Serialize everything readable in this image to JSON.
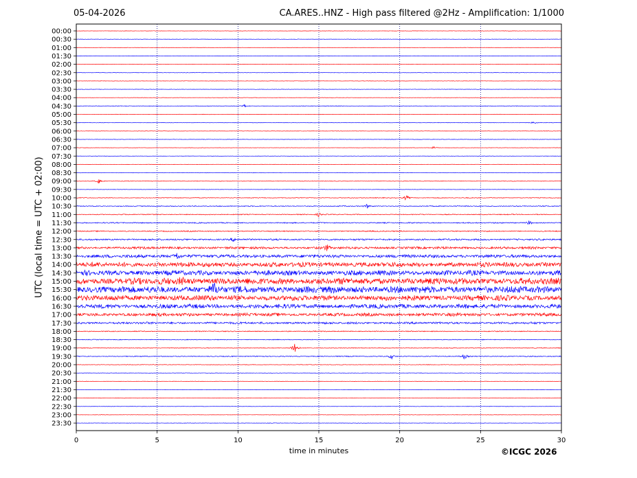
{
  "header": {
    "date": "05-04-2026",
    "title": "CA.ARES..HNZ - High pass filtered @2Hz - Amplification: 1/1000"
  },
  "footer": {
    "credit": "©ICGC 2026"
  },
  "chart_data": {
    "type": "line",
    "title": "CA.ARES..HNZ - High pass filtered @2Hz - Amplification: 1/1000",
    "xlabel": "time in minutes",
    "ylabel": "UTC (local time = UTC + 02:00)",
    "xlim": [
      0,
      30
    ],
    "x_ticks": [
      0,
      5,
      10,
      15,
      20,
      25,
      30
    ],
    "y_ticks": [
      "00:00",
      "00:30",
      "01:00",
      "01:30",
      "02:00",
      "02:30",
      "03:00",
      "03:30",
      "04:00",
      "04:30",
      "05:00",
      "05:30",
      "06:00",
      "06:30",
      "07:00",
      "07:30",
      "08:00",
      "08:30",
      "09:00",
      "09:30",
      "10:00",
      "10:30",
      "11:00",
      "11:30",
      "12:00",
      "12:30",
      "13:00",
      "13:30",
      "14:00",
      "14:30",
      "15:00",
      "15:30",
      "16:00",
      "16:30",
      "17:00",
      "17:30",
      "18:00",
      "18:30",
      "19:00",
      "19:30",
      "20:00",
      "20:30",
      "21:00",
      "21:30",
      "22:00",
      "22:30",
      "23:00",
      "23:30"
    ],
    "trace_colors": [
      "#ff0000",
      "#0000ff"
    ],
    "grid": "vertical dotted at x ticks",
    "trace_noise_level": [
      0.2,
      0.2,
      0.2,
      0.2,
      0.2,
      0.2,
      0.2,
      0.2,
      0.2,
      0.3,
      0.2,
      0.2,
      0.2,
      0.2,
      0.2,
      0.2,
      0.2,
      0.2,
      0.3,
      0.2,
      0.4,
      0.5,
      0.5,
      0.6,
      0.6,
      0.9,
      1.3,
      1.8,
      2.6,
      2.8,
      3.6,
      3.8,
      3.0,
      2.4,
      1.8,
      1.2,
      0.5,
      0.4,
      0.4,
      0.5,
      0.3,
      0.2,
      0.2,
      0.2,
      0.2,
      0.2,
      0.2,
      0.2
    ],
    "events": [
      {
        "row": "04:30",
        "minute": 10.4,
        "amplitude": 2
      },
      {
        "row": "05:30",
        "minute": 28.3,
        "amplitude": 2
      },
      {
        "row": "07:00",
        "minute": 22.1,
        "amplitude": 2
      },
      {
        "row": "09:00",
        "minute": 1.4,
        "amplitude": 4
      },
      {
        "row": "10:00",
        "minute": 20.4,
        "amplitude": 4
      },
      {
        "row": "10:30",
        "minute": 18.0,
        "amplitude": 3
      },
      {
        "row": "11:00",
        "minute": 15.0,
        "amplitude": 3
      },
      {
        "row": "11:30",
        "minute": 28.0,
        "amplitude": 3
      },
      {
        "row": "12:30",
        "minute": 9.7,
        "amplitude": 3
      },
      {
        "row": "13:00",
        "minute": 15.5,
        "amplitude": 4
      },
      {
        "row": "13:30",
        "minute": 6.2,
        "amplitude": 6
      },
      {
        "row": "15:00",
        "minute": 6.5,
        "amplitude": 7
      },
      {
        "row": "15:30",
        "minute": 8.5,
        "amplitude": 8
      },
      {
        "row": "19:00",
        "minute": 13.5,
        "amplitude": 11
      },
      {
        "row": "19:30",
        "minute": 19.5,
        "amplitude": 4
      },
      {
        "row": "19:30",
        "minute": 24.0,
        "amplitude": 4
      }
    ]
  }
}
